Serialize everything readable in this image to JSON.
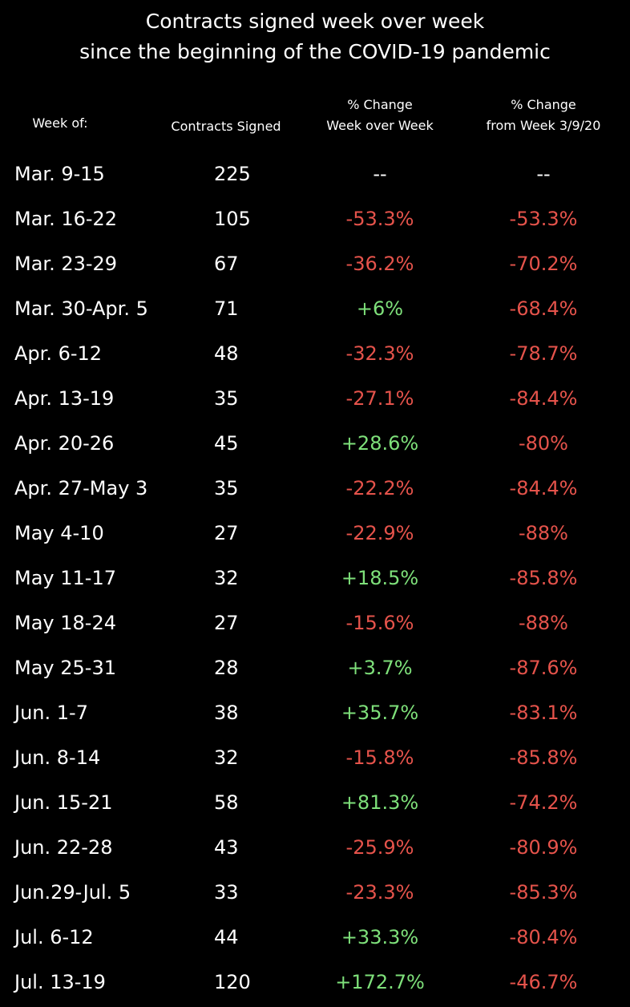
{
  "chart_data": {
    "type": "table",
    "title_lines": [
      "Contracts signed week over week",
      "since the beginning of the COVID-19 pandemic"
    ],
    "headers": {
      "week": [
        "Week of:"
      ],
      "contracts": [
        "Contracts Signed"
      ],
      "wow": [
        "% Change",
        "Week over Week"
      ],
      "base": [
        "% Change",
        "from Week 3/9/20"
      ]
    },
    "rows": [
      {
        "week": "Mar. 9-15",
        "contracts": "225",
        "wow": "--",
        "base": "--"
      },
      {
        "week": "Mar. 16-22",
        "contracts": "105",
        "wow": "-53.3%",
        "base": "-53.3%"
      },
      {
        "week": "Mar. 23-29",
        "contracts": "67",
        "wow": "-36.2%",
        "base": "-70.2%"
      },
      {
        "week": "Mar. 30-Apr. 5",
        "contracts": "71",
        "wow": "+6%",
        "base": "-68.4%"
      },
      {
        "week": "Apr. 6-12",
        "contracts": "48",
        "wow": "-32.3%",
        "base": "-78.7%"
      },
      {
        "week": "Apr. 13-19",
        "contracts": "35",
        "wow": "-27.1%",
        "base": "-84.4%"
      },
      {
        "week": "Apr. 20-26",
        "contracts": "45",
        "wow": "+28.6%",
        "base": "-80%"
      },
      {
        "week": "Apr. 27-May 3",
        "contracts": "35",
        "wow": "-22.2%",
        "base": "-84.4%"
      },
      {
        "week": "May 4-10",
        "contracts": "27",
        "wow": "-22.9%",
        "base": "-88%"
      },
      {
        "week": "May 11-17",
        "contracts": "32",
        "wow": "+18.5%",
        "base": "-85.8%"
      },
      {
        "week": "May 18-24",
        "contracts": "27",
        "wow": "-15.6%",
        "base": "-88%"
      },
      {
        "week": "May 25-31",
        "contracts": "28",
        "wow": "+3.7%",
        "base": "-87.6%"
      },
      {
        "week": "Jun. 1-7",
        "contracts": "38",
        "wow": "+35.7%",
        "base": "-83.1%"
      },
      {
        "week": "Jun. 8-14",
        "contracts": "32",
        "wow": "-15.8%",
        "base": "-85.8%"
      },
      {
        "week": "Jun. 15-21",
        "contracts": "58",
        "wow": "+81.3%",
        "base": "-74.2%"
      },
      {
        "week": "Jun. 22-28",
        "contracts": "43",
        "wow": "-25.9%",
        "base": "-80.9%"
      },
      {
        "week": "Jun.29-Jul. 5",
        "contracts": "33",
        "wow": "-23.3%",
        "base": "-85.3%"
      },
      {
        "week": "Jul. 6-12",
        "contracts": "44",
        "wow": "+33.3%",
        "base": "-80.4%"
      },
      {
        "week": "Jul. 13-19",
        "contracts": "120",
        "wow": "+172.7%",
        "base": "-46.7%"
      }
    ]
  },
  "colors": {
    "background": "#000000",
    "text": "#ffffff",
    "negative": "#e5534b",
    "positive": "#7ee07a"
  }
}
